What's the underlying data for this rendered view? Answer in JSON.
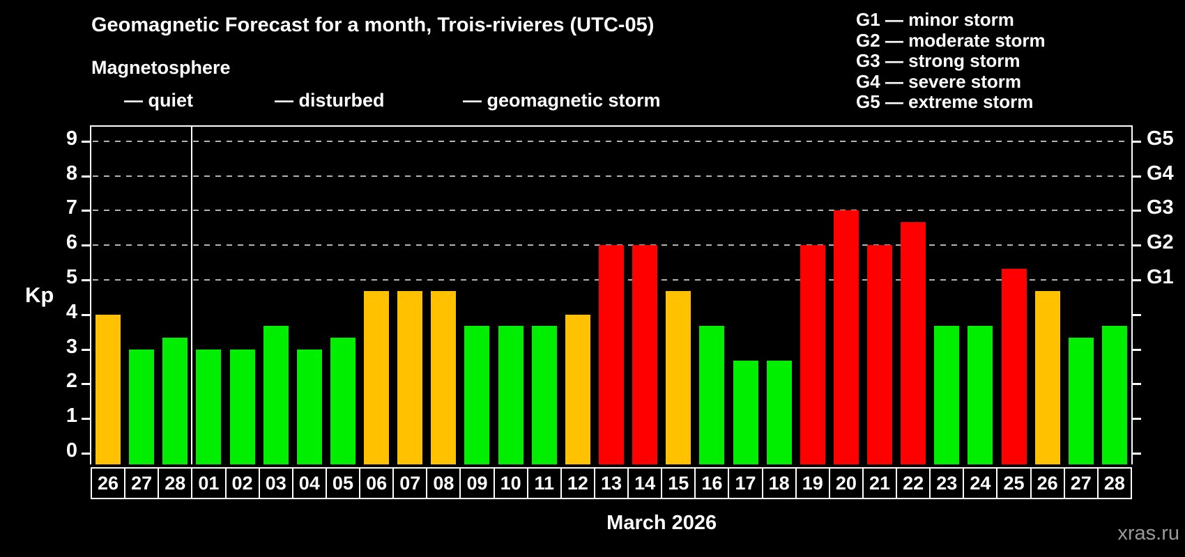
{
  "title": "Geomagnetic Forecast for a month, Trois-rivieres (UTC-05)",
  "subtitle": "Magnetosphere",
  "legend": {
    "items": [
      {
        "key": "quiet",
        "label": "— quiet"
      },
      {
        "key": "disturbed",
        "label": "— disturbed"
      },
      {
        "key": "storm",
        "label": "— geomagnetic storm"
      }
    ]
  },
  "g_legend": [
    "G1 — minor storm",
    "G2 — moderate storm",
    "G3 — strong storm",
    "G4 — severe storm",
    "G5 — extreme storm"
  ],
  "y_axis_title": "Kp",
  "month_label": "March 2026",
  "watermark": "xras.ru",
  "chart_data": {
    "type": "bar",
    "title": "Geomagnetic Forecast for a month, Trois-rivieres (UTC-05)",
    "subtitle": "Magnetosphere",
    "xlabel": "March 2026",
    "ylabel": "Kp",
    "ylim": [
      0,
      9
    ],
    "y_ticks": [
      0,
      1,
      2,
      3,
      4,
      5,
      6,
      7,
      8,
      9
    ],
    "gridlines_at": [
      5,
      6,
      7,
      8,
      9
    ],
    "grid_style": "dashed",
    "legend_position": "top-left",
    "right_axis_labels": [
      {
        "kp": 5,
        "label": "G1"
      },
      {
        "kp": 6,
        "label": "G2"
      },
      {
        "kp": 7,
        "label": "G3"
      },
      {
        "kp": 8,
        "label": "G4"
      },
      {
        "kp": 9,
        "label": "G5"
      }
    ],
    "categories": [
      "26",
      "27",
      "28",
      "01",
      "02",
      "03",
      "04",
      "05",
      "06",
      "07",
      "08",
      "09",
      "10",
      "11",
      "12",
      "13",
      "14",
      "15",
      "16",
      "17",
      "18",
      "19",
      "20",
      "21",
      "22",
      "23",
      "24",
      "25",
      "26",
      "27",
      "28"
    ],
    "values": [
      4.0,
      3.0,
      3.33,
      3.0,
      3.0,
      3.67,
      3.0,
      3.33,
      4.67,
      4.67,
      4.67,
      3.67,
      3.67,
      3.67,
      4.0,
      6.0,
      6.0,
      4.67,
      3.67,
      2.67,
      2.67,
      6.0,
      7.0,
      6.0,
      6.67,
      3.67,
      3.67,
      5.33,
      4.67,
      3.33,
      3.67
    ],
    "statuses": [
      "disturbed",
      "quiet",
      "quiet",
      "quiet",
      "quiet",
      "quiet",
      "quiet",
      "quiet",
      "disturbed",
      "disturbed",
      "disturbed",
      "quiet",
      "quiet",
      "quiet",
      "disturbed",
      "storm",
      "storm",
      "disturbed",
      "quiet",
      "quiet",
      "quiet",
      "storm",
      "storm",
      "storm",
      "storm",
      "quiet",
      "quiet",
      "storm",
      "disturbed",
      "quiet",
      "quiet"
    ],
    "colors": {
      "quiet": "#00ee00",
      "disturbed": "#ffc100",
      "storm": "#fe0000"
    },
    "grid_color": "#b5b5b5",
    "month_boundary_index": 3
  }
}
